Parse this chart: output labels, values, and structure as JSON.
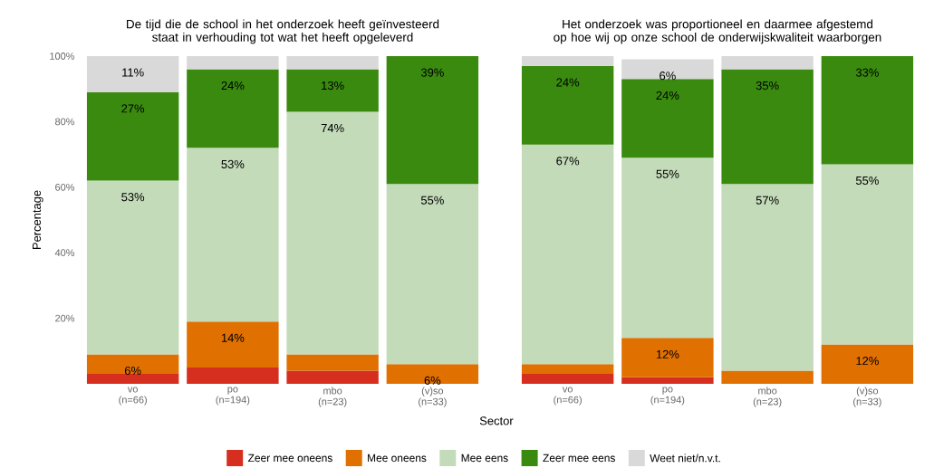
{
  "chart_data": [
    {
      "type": "bar",
      "stacked": true,
      "title": "De tijd die de school in het onderzoek heeft geïnvesteerd staat in verhouding tot wat het heeft opgeleverd",
      "xlabel": "Sector",
      "ylabel": "Percentage",
      "legend": "bottom",
      "categories": [
        "vo (n=66)",
        "po (n=194)",
        "mbo (n=23)",
        "(v)so (n=33)"
      ],
      "ylim": [
        0,
        100
      ],
      "yticks": [
        {
          "value": 20,
          "label": "20%"
        },
        {
          "value": 40,
          "label": "40%"
        },
        {
          "value": 60,
          "label": "60%"
        },
        {
          "value": 80,
          "label": "80%"
        },
        {
          "value": 100,
          "label": "100%"
        }
      ],
      "series": [
        {
          "name": "Zeer mee oneens",
          "color": "#d62f1f",
          "values": [
            3,
            5,
            4,
            0
          ],
          "value_labels": [
            null,
            null,
            null,
            null
          ]
        },
        {
          "name": "Mee oneens",
          "color": "#e07000",
          "values": [
            6,
            14,
            5,
            6
          ],
          "value_labels": [
            "6%",
            "14%",
            null,
            "6%"
          ]
        },
        {
          "name": "Mee eens",
          "color": "#c3dbb9",
          "values": [
            53,
            53,
            74,
            55
          ],
          "value_labels": [
            "53%",
            "53%",
            "74%",
            "55%"
          ]
        },
        {
          "name": "Zeer mee eens",
          "color": "#3a8a0f",
          "values": [
            27,
            24,
            13,
            39
          ],
          "value_labels": [
            "27%",
            "24%",
            "13%",
            "39%"
          ]
        },
        {
          "name": "Weet niet/n.v.t.",
          "color": "#d9d9d9",
          "values": [
            11,
            4,
            4,
            0
          ],
          "value_labels": [
            "11%",
            null,
            null,
            null
          ]
        }
      ]
    },
    {
      "type": "bar",
      "stacked": true,
      "title": "Het onderzoek was proportioneel en daarmee afgestemd op hoe wij op onze school de onderwijskwaliteit waarborgen",
      "tick_labels": "x",
      "categories": [
        "vo (n=66)",
        "po (n=194)",
        "mbo (n=23)",
        "(v)so (n=33)"
      ],
      "ylim": [
        0,
        100
      ],
      "series": [
        {
          "color": "#d62f1f",
          "values": [
            3,
            2,
            0,
            0
          ],
          "value_labels": [
            null,
            null,
            null,
            null
          ]
        },
        {
          "color": "#e07000",
          "values": [
            3,
            12,
            4,
            12
          ],
          "value_labels": [
            null,
            "12%",
            null,
            "12%"
          ]
        },
        {
          "color": "#c3dbb9",
          "values": [
            67,
            55,
            57,
            55
          ],
          "value_labels": [
            "67%",
            "55%",
            "57%",
            "55%"
          ]
        },
        {
          "color": "#3a8a0f",
          "values": [
            24,
            24,
            35,
            33
          ],
          "value_labels": [
            "24%",
            "24%",
            "35%",
            "33%"
          ]
        },
        {
          "color": "#d9d9d9",
          "values": [
            3,
            6,
            4,
            0
          ],
          "value_labels": [
            null,
            "6%",
            null,
            null
          ]
        }
      ]
    }
  ]
}
